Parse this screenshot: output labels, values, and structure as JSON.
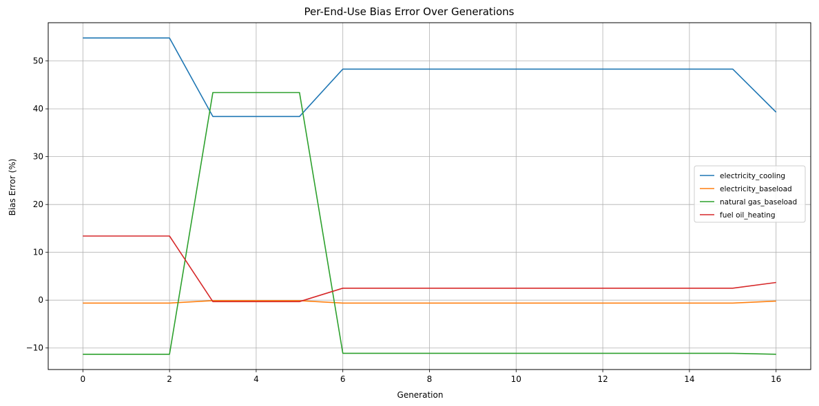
{
  "chart_data": {
    "type": "line",
    "title": "Per-End-Use Bias Error Over Generations",
    "xlabel": "Generation",
    "ylabel": "Bias Error (%)",
    "xlim": [
      -0.8,
      16.8
    ],
    "ylim": [
      -14.5,
      58
    ],
    "xticks": [
      0,
      2,
      4,
      6,
      8,
      10,
      12,
      14,
      16
    ],
    "yticks": [
      -10,
      0,
      10,
      20,
      30,
      40,
      50
    ],
    "grid": true,
    "legend_position": "center-right",
    "x": [
      0,
      1,
      2,
      3,
      4,
      5,
      6,
      7,
      8,
      9,
      10,
      11,
      12,
      13,
      14,
      15,
      16
    ],
    "series": [
      {
        "name": "electricity_cooling",
        "color": "#1f77b4",
        "values": [
          54.8,
          54.8,
          54.8,
          38.4,
          38.4,
          38.4,
          48.3,
          48.3,
          48.3,
          48.3,
          48.3,
          48.3,
          48.3,
          48.3,
          48.3,
          48.3,
          39.3
        ]
      },
      {
        "name": "electricity_baseload",
        "color": "#ff7f0e",
        "values": [
          -0.6,
          -0.6,
          -0.6,
          -0.1,
          -0.1,
          -0.1,
          -0.6,
          -0.6,
          -0.6,
          -0.6,
          -0.6,
          -0.6,
          -0.6,
          -0.6,
          -0.6,
          -0.6,
          -0.2
        ]
      },
      {
        "name": "natural gas_baseload",
        "color": "#2ca02c",
        "values": [
          -11.3,
          -11.3,
          -11.3,
          43.4,
          43.4,
          43.4,
          -11.1,
          -11.1,
          -11.1,
          -11.1,
          -11.1,
          -11.1,
          -11.1,
          -11.1,
          -11.1,
          -11.1,
          -11.3
        ]
      },
      {
        "name": "fuel oil_heating",
        "color": "#d62728",
        "values": [
          13.4,
          13.4,
          13.4,
          -0.3,
          -0.3,
          -0.3,
          2.5,
          2.5,
          2.5,
          2.5,
          2.5,
          2.5,
          2.5,
          2.5,
          2.5,
          2.5,
          3.7
        ]
      }
    ]
  }
}
